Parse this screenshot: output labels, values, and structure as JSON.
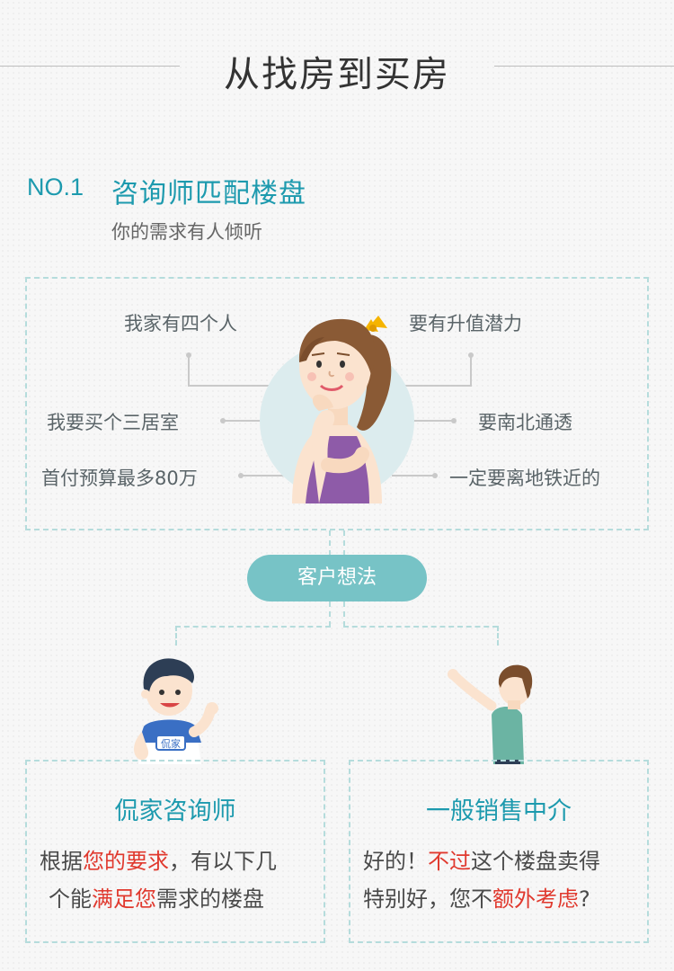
{
  "title": "从找房到买房",
  "section": {
    "number": "NO.1",
    "title": "咨询师匹配楼盘",
    "subtitle": "你的需求有人倾听"
  },
  "wishes": {
    "left_1": "我家有四个人",
    "left_2": "我要买个三居室",
    "left_3": "首付预算最多80万",
    "right_1": "要有升值潜力",
    "right_2": "要南北通透",
    "right_3": "一定要离地铁近的"
  },
  "pill_label": "客户想法",
  "cards": {
    "left": {
      "title": "侃家咨询师",
      "line1": [
        "根据",
        "您的要求",
        "，有以下几"
      ],
      "line2": [
        "个能",
        "满足您",
        "需求的楼盘"
      ],
      "badge": "侃家"
    },
    "right": {
      "title": "一般销售中介",
      "line1": [
        "好的！",
        "不过",
        "这个楼盘卖得"
      ],
      "line2": [
        "特别好，您不",
        "额外考虑",
        "?"
      ]
    }
  },
  "colors": {
    "accent": "#1d9aae",
    "highlight": "#e0392e",
    "pill": "#77c3c6",
    "dashed_border": "#b5dcdc"
  }
}
